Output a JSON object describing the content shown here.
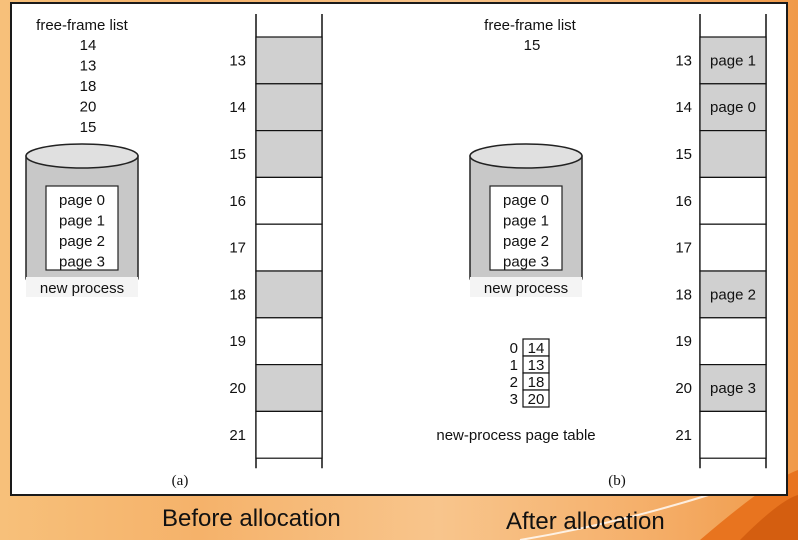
{
  "left": {
    "free_list_title": "free-frame list",
    "free_list": [
      "14",
      "13",
      "18",
      "20",
      "15"
    ],
    "disk_pages": [
      "page 0",
      "page 1",
      "page 2",
      "page 3"
    ],
    "disk_label": "new process",
    "frames": [
      {
        "num": "13",
        "used": true,
        "label": ""
      },
      {
        "num": "14",
        "used": true,
        "label": ""
      },
      {
        "num": "15",
        "used": true,
        "label": ""
      },
      {
        "num": "16",
        "used": false,
        "label": ""
      },
      {
        "num": "17",
        "used": false,
        "label": ""
      },
      {
        "num": "18",
        "used": true,
        "label": ""
      },
      {
        "num": "19",
        "used": false,
        "label": ""
      },
      {
        "num": "20",
        "used": true,
        "label": ""
      },
      {
        "num": "21",
        "used": false,
        "label": ""
      }
    ],
    "sublabel": "(a)"
  },
  "right": {
    "free_list_title": "free-frame list",
    "free_list": [
      "15"
    ],
    "disk_pages": [
      "page 0",
      "page 1",
      "page 2",
      "page 3"
    ],
    "disk_label": "new process",
    "page_table": [
      {
        "index": "0",
        "frame": "14"
      },
      {
        "index": "1",
        "frame": "13"
      },
      {
        "index": "2",
        "frame": "18"
      },
      {
        "index": "3",
        "frame": "20"
      }
    ],
    "page_table_label": "new-process page table",
    "frames": [
      {
        "num": "13",
        "used": true,
        "label": "page 1"
      },
      {
        "num": "14",
        "used": true,
        "label": "page 0"
      },
      {
        "num": "15",
        "used": true,
        "label": ""
      },
      {
        "num": "16",
        "used": false,
        "label": ""
      },
      {
        "num": "17",
        "used": false,
        "label": ""
      },
      {
        "num": "18",
        "used": true,
        "label": "page 2"
      },
      {
        "num": "19",
        "used": false,
        "label": ""
      },
      {
        "num": "20",
        "used": true,
        "label": "page 3"
      },
      {
        "num": "21",
        "used": false,
        "label": ""
      }
    ],
    "sublabel": "(b)"
  },
  "captions": {
    "before": "Before allocation",
    "after": "After allocation"
  },
  "colors": {
    "used_frame": "#d0d0d0",
    "free_frame": "#ffffff",
    "disk_body": "#c8c8c8"
  }
}
